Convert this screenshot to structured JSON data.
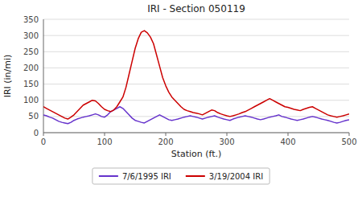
{
  "chart_data": {
    "type": "line",
    "title": "IRI - Section 050119",
    "x_label": "Station (ft.)",
    "y_label": "IRI (in/mi)",
    "xlim": [
      0,
      500
    ],
    "ylim": [
      0,
      350
    ],
    "xticks": [
      0,
      100,
      200,
      300,
      400,
      500
    ],
    "yticks": [
      0,
      50,
      100,
      150,
      200,
      250,
      300,
      350
    ],
    "grid": true,
    "legend": "bottom",
    "x": [
      0,
      5,
      10,
      15,
      20,
      25,
      30,
      35,
      40,
      45,
      50,
      55,
      60,
      65,
      70,
      75,
      80,
      85,
      90,
      95,
      100,
      105,
      110,
      115,
      120,
      125,
      130,
      135,
      140,
      145,
      150,
      155,
      160,
      165,
      170,
      175,
      180,
      185,
      190,
      195,
      200,
      205,
      210,
      215,
      220,
      225,
      230,
      235,
      240,
      245,
      250,
      255,
      260,
      265,
      270,
      275,
      280,
      285,
      290,
      295,
      300,
      305,
      310,
      315,
      320,
      325,
      330,
      335,
      340,
      345,
      350,
      355,
      360,
      365,
      370,
      375,
      380,
      385,
      390,
      395,
      400,
      405,
      410,
      415,
      420,
      425,
      430,
      435,
      440,
      445,
      450,
      455,
      460,
      465,
      470,
      475,
      480,
      485,
      490,
      495,
      500
    ],
    "series": [
      {
        "name": "7/6/1995 IRI",
        "color": "#6633cc",
        "values": [
          55,
          52,
          48,
          45,
          40,
          35,
          32,
          30,
          28,
          32,
          38,
          42,
          45,
          48,
          50,
          52,
          55,
          58,
          55,
          50,
          48,
          55,
          65,
          70,
          75,
          80,
          75,
          65,
          55,
          45,
          38,
          35,
          32,
          30,
          35,
          40,
          45,
          50,
          55,
          50,
          45,
          40,
          38,
          40,
          42,
          45,
          48,
          50,
          52,
          50,
          48,
          45,
          42,
          45,
          48,
          50,
          52,
          48,
          45,
          42,
          40,
          38,
          42,
          45,
          48,
          50,
          52,
          50,
          48,
          45,
          42,
          40,
          42,
          45,
          48,
          50,
          52,
          55,
          50,
          48,
          45,
          42,
          40,
          38,
          40,
          42,
          45,
          48,
          50,
          48,
          45,
          42,
          40,
          38,
          35,
          32,
          30,
          32,
          35,
          38,
          40
        ]
      },
      {
        "name": "3/19/2004 IRI",
        "color": "#cc0000",
        "values": [
          80,
          75,
          70,
          65,
          60,
          55,
          50,
          45,
          42,
          48,
          55,
          65,
          75,
          85,
          90,
          95,
          100,
          98,
          90,
          80,
          72,
          68,
          65,
          70,
          80,
          95,
          110,
          140,
          180,
          220,
          260,
          290,
          310,
          315,
          308,
          295,
          275,
          240,
          205,
          170,
          145,
          125,
          110,
          100,
          90,
          80,
          72,
          68,
          65,
          62,
          60,
          58,
          55,
          60,
          65,
          70,
          68,
          62,
          58,
          55,
          52,
          50,
          52,
          55,
          58,
          62,
          65,
          70,
          75,
          80,
          85,
          90,
          95,
          100,
          105,
          100,
          95,
          90,
          85,
          80,
          78,
          75,
          72,
          70,
          68,
          72,
          75,
          78,
          80,
          75,
          70,
          65,
          60,
          55,
          52,
          50,
          48,
          50,
          52,
          55,
          58
        ]
      }
    ]
  }
}
